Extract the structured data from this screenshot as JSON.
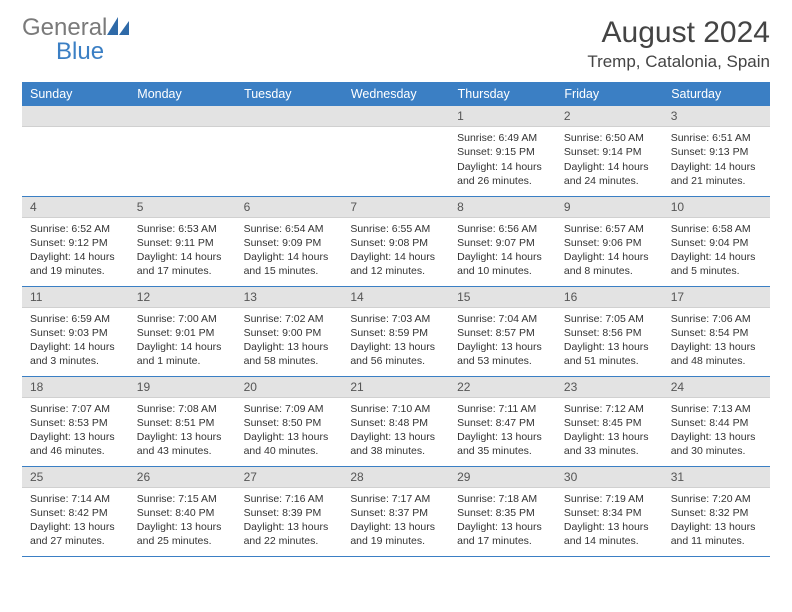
{
  "logo": {
    "text1": "General",
    "text2": "Blue"
  },
  "header": {
    "title": "August 2024",
    "location": "Tremp, Catalonia, Spain"
  },
  "colors": {
    "header_bg": "#3b7fc4",
    "header_fg": "#ffffff",
    "daynum_bg": "#e3e3e3",
    "border": "#3b7fc4",
    "logo_gray": "#7a7a7a",
    "logo_blue": "#3b7fc4",
    "text": "#333333"
  },
  "weekdays": [
    "Sunday",
    "Monday",
    "Tuesday",
    "Wednesday",
    "Thursday",
    "Friday",
    "Saturday"
  ],
  "weeks": [
    [
      {
        "blank": true
      },
      {
        "blank": true
      },
      {
        "blank": true
      },
      {
        "blank": true
      },
      {
        "day": "1",
        "sunrise": "Sunrise: 6:49 AM",
        "sunset": "Sunset: 9:15 PM",
        "daylight": "Daylight: 14 hours and 26 minutes."
      },
      {
        "day": "2",
        "sunrise": "Sunrise: 6:50 AM",
        "sunset": "Sunset: 9:14 PM",
        "daylight": "Daylight: 14 hours and 24 minutes."
      },
      {
        "day": "3",
        "sunrise": "Sunrise: 6:51 AM",
        "sunset": "Sunset: 9:13 PM",
        "daylight": "Daylight: 14 hours and 21 minutes."
      }
    ],
    [
      {
        "day": "4",
        "sunrise": "Sunrise: 6:52 AM",
        "sunset": "Sunset: 9:12 PM",
        "daylight": "Daylight: 14 hours and 19 minutes."
      },
      {
        "day": "5",
        "sunrise": "Sunrise: 6:53 AM",
        "sunset": "Sunset: 9:11 PM",
        "daylight": "Daylight: 14 hours and 17 minutes."
      },
      {
        "day": "6",
        "sunrise": "Sunrise: 6:54 AM",
        "sunset": "Sunset: 9:09 PM",
        "daylight": "Daylight: 14 hours and 15 minutes."
      },
      {
        "day": "7",
        "sunrise": "Sunrise: 6:55 AM",
        "sunset": "Sunset: 9:08 PM",
        "daylight": "Daylight: 14 hours and 12 minutes."
      },
      {
        "day": "8",
        "sunrise": "Sunrise: 6:56 AM",
        "sunset": "Sunset: 9:07 PM",
        "daylight": "Daylight: 14 hours and 10 minutes."
      },
      {
        "day": "9",
        "sunrise": "Sunrise: 6:57 AM",
        "sunset": "Sunset: 9:06 PM",
        "daylight": "Daylight: 14 hours and 8 minutes."
      },
      {
        "day": "10",
        "sunrise": "Sunrise: 6:58 AM",
        "sunset": "Sunset: 9:04 PM",
        "daylight": "Daylight: 14 hours and 5 minutes."
      }
    ],
    [
      {
        "day": "11",
        "sunrise": "Sunrise: 6:59 AM",
        "sunset": "Sunset: 9:03 PM",
        "daylight": "Daylight: 14 hours and 3 minutes."
      },
      {
        "day": "12",
        "sunrise": "Sunrise: 7:00 AM",
        "sunset": "Sunset: 9:01 PM",
        "daylight": "Daylight: 14 hours and 1 minute."
      },
      {
        "day": "13",
        "sunrise": "Sunrise: 7:02 AM",
        "sunset": "Sunset: 9:00 PM",
        "daylight": "Daylight: 13 hours and 58 minutes."
      },
      {
        "day": "14",
        "sunrise": "Sunrise: 7:03 AM",
        "sunset": "Sunset: 8:59 PM",
        "daylight": "Daylight: 13 hours and 56 minutes."
      },
      {
        "day": "15",
        "sunrise": "Sunrise: 7:04 AM",
        "sunset": "Sunset: 8:57 PM",
        "daylight": "Daylight: 13 hours and 53 minutes."
      },
      {
        "day": "16",
        "sunrise": "Sunrise: 7:05 AM",
        "sunset": "Sunset: 8:56 PM",
        "daylight": "Daylight: 13 hours and 51 minutes."
      },
      {
        "day": "17",
        "sunrise": "Sunrise: 7:06 AM",
        "sunset": "Sunset: 8:54 PM",
        "daylight": "Daylight: 13 hours and 48 minutes."
      }
    ],
    [
      {
        "day": "18",
        "sunrise": "Sunrise: 7:07 AM",
        "sunset": "Sunset: 8:53 PM",
        "daylight": "Daylight: 13 hours and 46 minutes."
      },
      {
        "day": "19",
        "sunrise": "Sunrise: 7:08 AM",
        "sunset": "Sunset: 8:51 PM",
        "daylight": "Daylight: 13 hours and 43 minutes."
      },
      {
        "day": "20",
        "sunrise": "Sunrise: 7:09 AM",
        "sunset": "Sunset: 8:50 PM",
        "daylight": "Daylight: 13 hours and 40 minutes."
      },
      {
        "day": "21",
        "sunrise": "Sunrise: 7:10 AM",
        "sunset": "Sunset: 8:48 PM",
        "daylight": "Daylight: 13 hours and 38 minutes."
      },
      {
        "day": "22",
        "sunrise": "Sunrise: 7:11 AM",
        "sunset": "Sunset: 8:47 PM",
        "daylight": "Daylight: 13 hours and 35 minutes."
      },
      {
        "day": "23",
        "sunrise": "Sunrise: 7:12 AM",
        "sunset": "Sunset: 8:45 PM",
        "daylight": "Daylight: 13 hours and 33 minutes."
      },
      {
        "day": "24",
        "sunrise": "Sunrise: 7:13 AM",
        "sunset": "Sunset: 8:44 PM",
        "daylight": "Daylight: 13 hours and 30 minutes."
      }
    ],
    [
      {
        "day": "25",
        "sunrise": "Sunrise: 7:14 AM",
        "sunset": "Sunset: 8:42 PM",
        "daylight": "Daylight: 13 hours and 27 minutes."
      },
      {
        "day": "26",
        "sunrise": "Sunrise: 7:15 AM",
        "sunset": "Sunset: 8:40 PM",
        "daylight": "Daylight: 13 hours and 25 minutes."
      },
      {
        "day": "27",
        "sunrise": "Sunrise: 7:16 AM",
        "sunset": "Sunset: 8:39 PM",
        "daylight": "Daylight: 13 hours and 22 minutes."
      },
      {
        "day": "28",
        "sunrise": "Sunrise: 7:17 AM",
        "sunset": "Sunset: 8:37 PM",
        "daylight": "Daylight: 13 hours and 19 minutes."
      },
      {
        "day": "29",
        "sunrise": "Sunrise: 7:18 AM",
        "sunset": "Sunset: 8:35 PM",
        "daylight": "Daylight: 13 hours and 17 minutes."
      },
      {
        "day": "30",
        "sunrise": "Sunrise: 7:19 AM",
        "sunset": "Sunset: 8:34 PM",
        "daylight": "Daylight: 13 hours and 14 minutes."
      },
      {
        "day": "31",
        "sunrise": "Sunrise: 7:20 AM",
        "sunset": "Sunset: 8:32 PM",
        "daylight": "Daylight: 13 hours and 11 minutes."
      }
    ]
  ]
}
